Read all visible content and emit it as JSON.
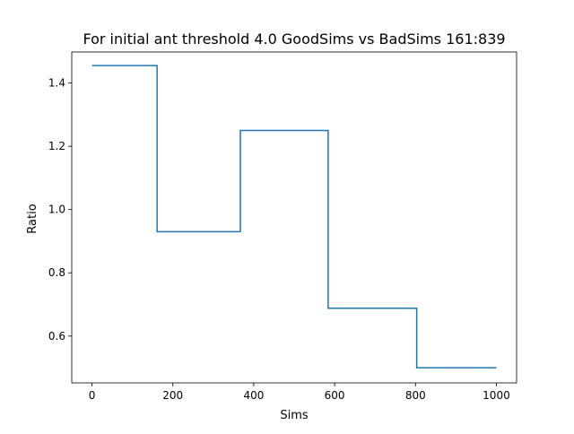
{
  "chart_data": {
    "type": "line",
    "step": true,
    "title": "For initial ant threshold 4.0 GoodSims vs BadSims 161:839",
    "xlabel": "Sims",
    "ylabel": "Ratio",
    "xlim": [
      -50,
      1050
    ],
    "ylim": [
      0.452,
      1.498
    ],
    "xticks": [
      0,
      200,
      400,
      600,
      800,
      1000
    ],
    "yticks": [
      0.6,
      0.8,
      1.0,
      1.2,
      1.4
    ],
    "xtick_labels": [
      "0",
      "200",
      "400",
      "600",
      "800",
      "1000"
    ],
    "ytick_labels": [
      "0.6",
      "0.8",
      "1.0",
      "1.2",
      "1.4"
    ],
    "grid": false,
    "series": [
      {
        "color": "#1f77b4",
        "x": [
          0,
          161,
          161,
          367,
          367,
          584,
          584,
          803,
          803,
          1000
        ],
        "y": [
          1.455,
          1.455,
          0.93,
          0.93,
          1.25,
          1.25,
          0.688,
          0.688,
          0.5,
          0.5
        ]
      }
    ]
  }
}
